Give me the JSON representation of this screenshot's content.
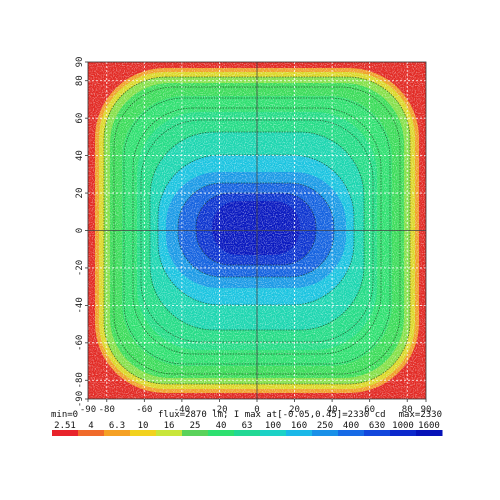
{
  "chart_data": {
    "type": "heatmap",
    "title": "",
    "xlabel": "",
    "ylabel": "",
    "xlim": [
      -90,
      90
    ],
    "ylim": [
      -90,
      90
    ],
    "x_ticks": [
      "-90",
      "-80",
      "-60",
      "-40",
      "-20",
      "0",
      "20",
      "40",
      "60",
      "80",
      "90"
    ],
    "y_ticks": [
      "-90",
      "-80",
      "-60",
      "-40",
      "-20",
      "0",
      "20",
      "40",
      "60",
      "80",
      "90"
    ],
    "x_tick_values": [
      -90,
      -80,
      -60,
      -40,
      -20,
      0,
      20,
      40,
      60,
      80,
      90
    ],
    "y_tick_values": [
      -90,
      -80,
      -60,
      -40,
      -20,
      0,
      20,
      40,
      60,
      80,
      90
    ],
    "grid": true,
    "min_label": "min=0",
    "flux_label": "flux=2870 lm; I max at[-0.05,0.45]=2330 cd",
    "max_label": "max=2330",
    "max_location": [
      -0.05,
      0.45
    ],
    "max_value": 2330,
    "colorbar": {
      "labels": [
        "2.51",
        "4",
        "6.3",
        "10",
        "16",
        "25",
        "40",
        "63",
        "100",
        "160",
        "250",
        "400",
        "630",
        "1000",
        "1600"
      ],
      "colors": [
        "#e8232b",
        "#f06a2a",
        "#f5a024",
        "#f2d21e",
        "#c8e63a",
        "#5ad25a",
        "#2ee070",
        "#22d894",
        "#1cd2c6",
        "#1ab8e8",
        "#1990e8",
        "#166ae6",
        "#1246dc",
        "#0c28cc",
        "#0612b8"
      ],
      "scale": "log"
    }
  }
}
